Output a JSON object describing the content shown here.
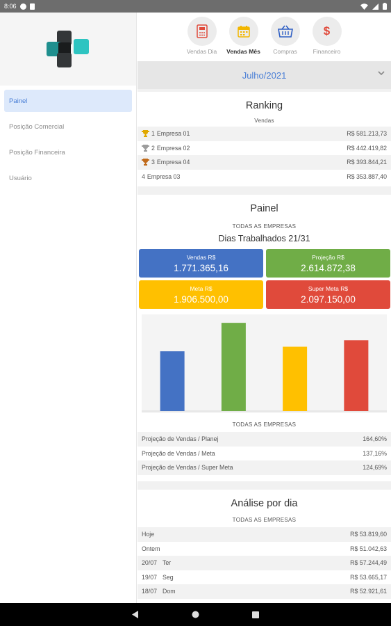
{
  "status_bar": {
    "time": "8:06"
  },
  "sidebar": {
    "items": [
      {
        "label": "Painel",
        "active": true
      },
      {
        "label": "Posição Comercial",
        "active": false
      },
      {
        "label": "Posição Financeira",
        "active": false
      },
      {
        "label": "Usuário",
        "active": false
      }
    ]
  },
  "tabs": [
    {
      "label": "Vendas Dia",
      "icon": "calculator-icon",
      "active": false
    },
    {
      "label": "Vendas Mês",
      "icon": "calendar-icon",
      "active": true
    },
    {
      "label": "Compras",
      "icon": "basket-icon",
      "active": false
    },
    {
      "label": "Financeiro",
      "icon": "dollar-icon",
      "active": false
    }
  ],
  "month_selector": {
    "value": "Julho/2021"
  },
  "ranking": {
    "title": "Ranking",
    "subtitle": "Vendas",
    "rows": [
      {
        "position": "1",
        "name": "Empresa 01",
        "value": "R$ 581.213,73",
        "trophy": "gold"
      },
      {
        "position": "2",
        "name": "Empresa 02",
        "value": "R$ 442.419,82",
        "trophy": "silver"
      },
      {
        "position": "3",
        "name": "Empresa 04",
        "value": "R$ 393.844,21",
        "trophy": "bronze"
      },
      {
        "position": "4",
        "name": "Empresa 03",
        "value": "R$ 353.887,40",
        "trophy": ""
      }
    ]
  },
  "painel": {
    "title": "Painel",
    "scope": "TODAS AS EMPRESAS",
    "days_worked": "Dias Trabalhados 21/31",
    "kpis": {
      "vendas": {
        "label": "Vendas R$",
        "value": "1.771.365,16",
        "color": "#4472c4"
      },
      "projecao": {
        "label": "Projeção R$",
        "value": "2.614.872,38",
        "color": "#70ad47"
      },
      "meta": {
        "label": "Meta R$",
        "value": "1.906.500,00",
        "color": "#ffc000"
      },
      "super_meta": {
        "label": "Super Meta R$",
        "value": "2.097.150,00",
        "color": "#e04a3b"
      }
    },
    "chart_caption": "TODAS AS EMPRESAS",
    "ratios": [
      {
        "label": "Projeção de Vendas / Planej",
        "value": "164,60%"
      },
      {
        "label": "Projeção de Vendas / Meta",
        "value": "137,16%"
      },
      {
        "label": "Projeção de Vendas / Super Meta",
        "value": "124,69%"
      }
    ]
  },
  "chart_data": {
    "type": "bar",
    "categories": [
      "Vendas",
      "Projeção",
      "Meta",
      "Super Meta"
    ],
    "values": [
      1771365.16,
      2614872.38,
      1906500.0,
      2097150.0
    ],
    "colors": [
      "#4472c4",
      "#70ad47",
      "#ffc000",
      "#e04a3b"
    ],
    "ylim": [
      0,
      2700000
    ],
    "grid": false,
    "title": "",
    "xlabel": "",
    "ylabel": ""
  },
  "analise": {
    "title": "Análise por dia",
    "scope": "TODAS AS EMPRESAS",
    "rows": [
      {
        "date": "Hoje",
        "weekday": "",
        "value": "R$ 53.819,60"
      },
      {
        "date": "Ontem",
        "weekday": "",
        "value": "R$ 51.042,63"
      },
      {
        "date": "20/07",
        "weekday": "Ter",
        "value": "R$ 57.244,49"
      },
      {
        "date": "19/07",
        "weekday": "Seg",
        "value": "R$ 53.665,17"
      },
      {
        "date": "18/07",
        "weekday": "Dom",
        "value": "R$ 52.921,61"
      }
    ]
  }
}
